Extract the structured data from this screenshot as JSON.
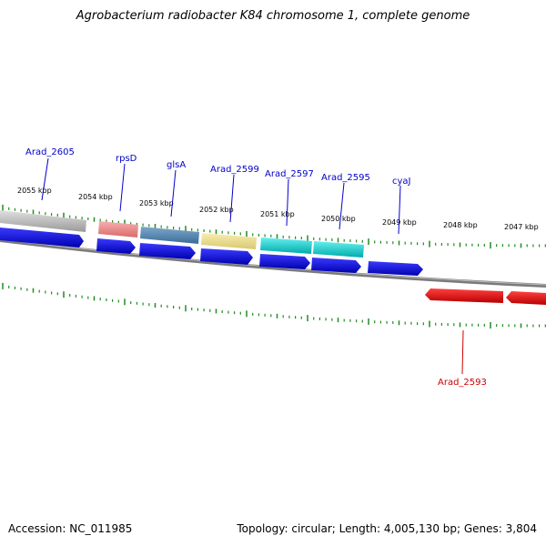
{
  "title": "Agrobacterium radiobacter K84 chromosome 1, complete genome",
  "footer": {
    "accession": "Accession: NC_011985",
    "summary": "Topology: circular; Length: 4,005,130 bp; Genes: 3,804"
  },
  "tick_labels": [
    "2055 kbp",
    "2054 kbp",
    "2053 kbp",
    "2052 kbp",
    "2051 kbp",
    "2050 kbp",
    "2049 kbp",
    "2048 kbp",
    "2047 kbp"
  ],
  "gene_labels": {
    "arad_2605": "Arad_2605",
    "rpsD": "rpsD",
    "glsA": "glsA",
    "arad_2599": "Arad_2599",
    "arad_2597": "Arad_2597",
    "arad_2595": "Arad_2595",
    "cyaJ": "cyaJ",
    "arad_2593": "Arad_2593"
  },
  "colors": {
    "forward_cds": "#0000ee",
    "reverse_cds": "#ee0000",
    "label_forward": "#0000cc",
    "label_reverse": "#cc0000",
    "backbone": "#888888",
    "tick": "#228b22"
  }
}
